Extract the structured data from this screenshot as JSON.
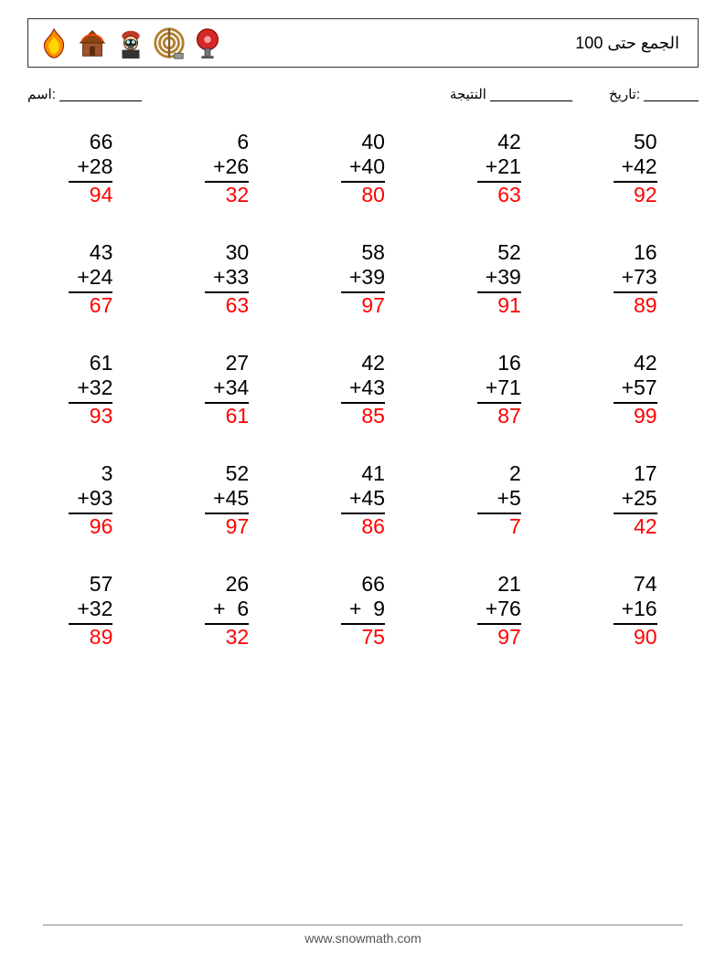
{
  "header": {
    "title": "الجمع حتى 100",
    "icons": [
      "flame",
      "house",
      "firefighter",
      "hose",
      "alarm-bell"
    ]
  },
  "meta": {
    "name_label": "اسم:",
    "score_label": "النتيجة",
    "date_label": "تاريخ:"
  },
  "style": {
    "font_size_problem": 23,
    "answer_color": "#ff0000",
    "line_color": "#000000",
    "columns": 5,
    "rows": 5
  },
  "problems": [
    [
      {
        "a": 66,
        "b": 28,
        "ans": 94
      },
      {
        "a": 6,
        "b": 26,
        "ans": 32
      },
      {
        "a": 40,
        "b": 40,
        "ans": 80
      },
      {
        "a": 42,
        "b": 21,
        "ans": 63
      },
      {
        "a": 50,
        "b": 42,
        "ans": 92
      }
    ],
    [
      {
        "a": 43,
        "b": 24,
        "ans": 67
      },
      {
        "a": 30,
        "b": 33,
        "ans": 63
      },
      {
        "a": 58,
        "b": 39,
        "ans": 97
      },
      {
        "a": 52,
        "b": 39,
        "ans": 91
      },
      {
        "a": 16,
        "b": 73,
        "ans": 89
      }
    ],
    [
      {
        "a": 61,
        "b": 32,
        "ans": 93
      },
      {
        "a": 27,
        "b": 34,
        "ans": 61
      },
      {
        "a": 42,
        "b": 43,
        "ans": 85
      },
      {
        "a": 16,
        "b": 71,
        "ans": 87
      },
      {
        "a": 42,
        "b": 57,
        "ans": 99
      }
    ],
    [
      {
        "a": 3,
        "b": 93,
        "ans": 96
      },
      {
        "a": 52,
        "b": 45,
        "ans": 97
      },
      {
        "a": 41,
        "b": 45,
        "ans": 86
      },
      {
        "a": 2,
        "b": 5,
        "ans": 7
      },
      {
        "a": 17,
        "b": 25,
        "ans": 42
      }
    ],
    [
      {
        "a": 57,
        "b": 32,
        "ans": 89
      },
      {
        "a": 26,
        "b": 6,
        "ans": 32
      },
      {
        "a": 66,
        "b": 9,
        "ans": 75
      },
      {
        "a": 21,
        "b": 76,
        "ans": 97
      },
      {
        "a": 74,
        "b": 16,
        "ans": 90
      }
    ]
  ],
  "footer": {
    "url": "www.snowmath.com"
  }
}
